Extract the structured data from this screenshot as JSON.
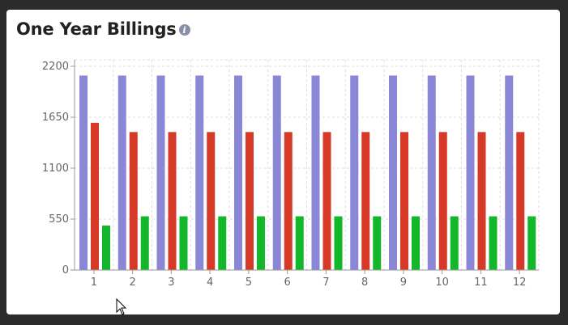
{
  "card": {
    "title": "One Year Billings",
    "info_icon": "info-icon"
  },
  "colors": {
    "series_a": "#8a87d6",
    "series_b": "#d63a27",
    "series_c": "#12b82a",
    "grid": "#dddddd",
    "axis": "#999999"
  },
  "chart_data": {
    "type": "bar",
    "title": "One Year Billings",
    "xlabel": "",
    "ylabel": "",
    "categories": [
      "1",
      "2",
      "3",
      "4",
      "5",
      "6",
      "7",
      "8",
      "9",
      "10",
      "11",
      "12"
    ],
    "series": [
      {
        "values": [
          2100,
          2100,
          2100,
          2100,
          2100,
          2100,
          2100,
          2100,
          2100,
          2100,
          2100,
          2100
        ]
      },
      {
        "values": [
          1590,
          1490,
          1490,
          1490,
          1490,
          1490,
          1490,
          1490,
          1490,
          1490,
          1490,
          1490
        ]
      },
      {
        "values": [
          480,
          580,
          580,
          580,
          580,
          580,
          580,
          580,
          580,
          580,
          580,
          580
        ]
      }
    ],
    "yticks": [
      0,
      550,
      1100,
      1650,
      2200
    ],
    "ylim": [
      0,
      2200
    ],
    "grid": true,
    "legend": "none"
  }
}
